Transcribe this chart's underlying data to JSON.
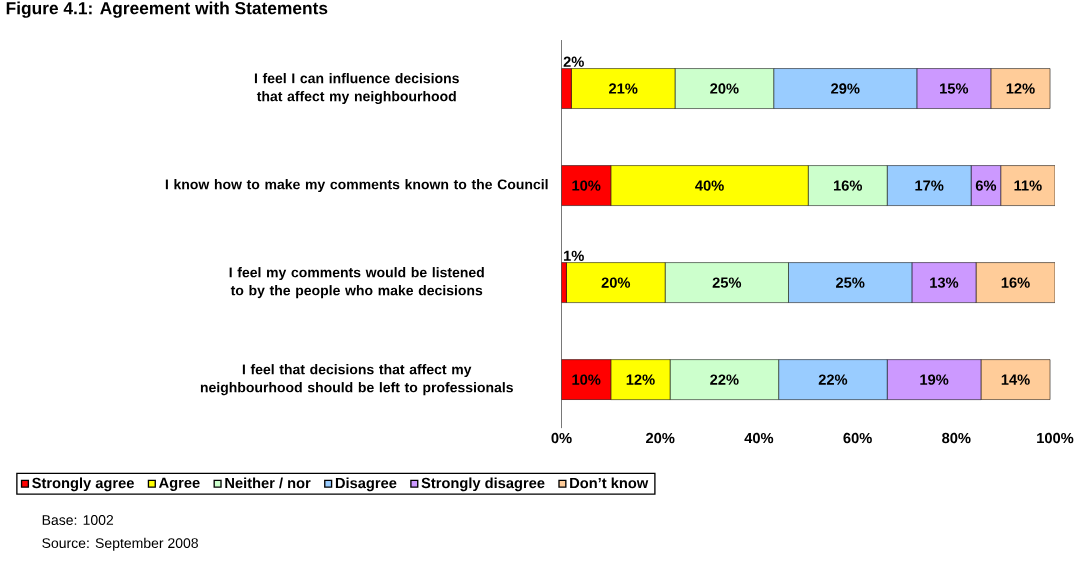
{
  "chart_data": {
    "type": "bar",
    "orientation": "horizontal",
    "stacked": true,
    "title": "Figure 4.1: Agreement with Statements",
    "categories": [
      "I feel I can influence decisions that affect my neighbourhood",
      "I know how to make my comments known to the Council",
      "I feel my comments would be listened to by the people who make decisions",
      "I feel that decisions that affect my neighbourhood should be left to professionals"
    ],
    "series": [
      {
        "name": "Strongly agree",
        "color": "#ff0000",
        "values": [
          2,
          10,
          1,
          10
        ],
        "value_labels": [
          "2%",
          "10%",
          "1%",
          "10%"
        ]
      },
      {
        "name": "Agree",
        "color": "#ffff00",
        "values": [
          21,
          40,
          20,
          12
        ],
        "value_labels": [
          "21%",
          "40%",
          "20%",
          "12%"
        ]
      },
      {
        "name": "Neither / nor",
        "color": "#ccffcc",
        "values": [
          20,
          16,
          25,
          22
        ],
        "value_labels": [
          "20%",
          "16%",
          "25%",
          "22%"
        ]
      },
      {
        "name": "Disagree",
        "color": "#99ccff",
        "values": [
          29,
          17,
          25,
          22
        ],
        "value_labels": [
          "29%",
          "17%",
          "25%",
          "22%"
        ]
      },
      {
        "name": "Strongly disagree",
        "color": "#cc99ff",
        "values": [
          15,
          6,
          13,
          19
        ],
        "value_labels": [
          "15%",
          "6%",
          "13%",
          "19%"
        ]
      },
      {
        "name": "Don’t know",
        "color": "#ffcc99",
        "values": [
          12,
          11,
          16,
          14
        ],
        "value_labels": [
          "12%",
          "11%",
          "16%",
          "14%"
        ]
      }
    ],
    "xlim": [
      0,
      100
    ],
    "xticks": [
      {
        "value": 0,
        "label": "0%"
      },
      {
        "value": 20,
        "label": "20%"
      },
      {
        "value": 40,
        "label": "40%"
      },
      {
        "value": 60,
        "label": "60%"
      },
      {
        "value": 80,
        "label": "80%"
      },
      {
        "value": 100,
        "label": "100%"
      }
    ],
    "legend": "bottom",
    "annotations": [
      "Base: 1002",
      "Source: September 2008"
    ]
  }
}
